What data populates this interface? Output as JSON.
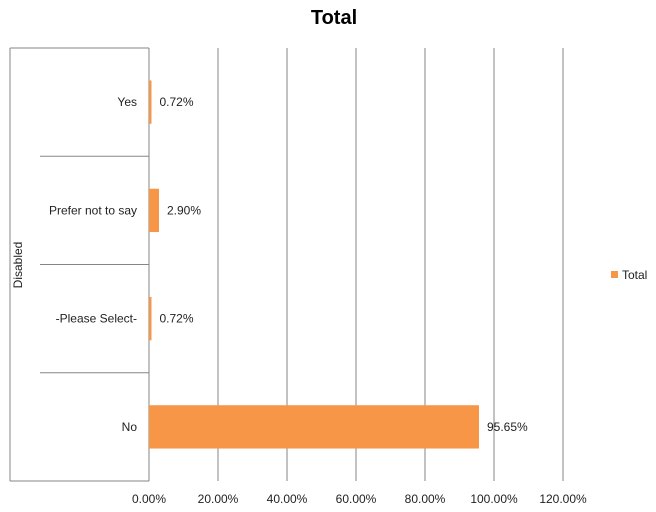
{
  "chart_data": {
    "type": "bar",
    "orientation": "horizontal",
    "title": "Total",
    "ylabel": "Disabled",
    "xlabel": "",
    "categories": [
      "Yes",
      "Prefer not to say",
      "-Please Select-",
      "No"
    ],
    "series": [
      {
        "name": "Total",
        "values": [
          0.72,
          2.9,
          0.72,
          95.65
        ],
        "labels": [
          "0.72%",
          "2.90%",
          "0.72%",
          "95.65%"
        ]
      }
    ],
    "xlim": [
      0,
      120
    ],
    "xticks": [
      "0.00%",
      "20.00%",
      "40.00%",
      "60.00%",
      "80.00%",
      "100.00%",
      "120.00%"
    ],
    "grid": true,
    "legend": "right",
    "colors": {
      "bar": "#F79646",
      "grid": "#868686",
      "axis": "#868686"
    }
  }
}
